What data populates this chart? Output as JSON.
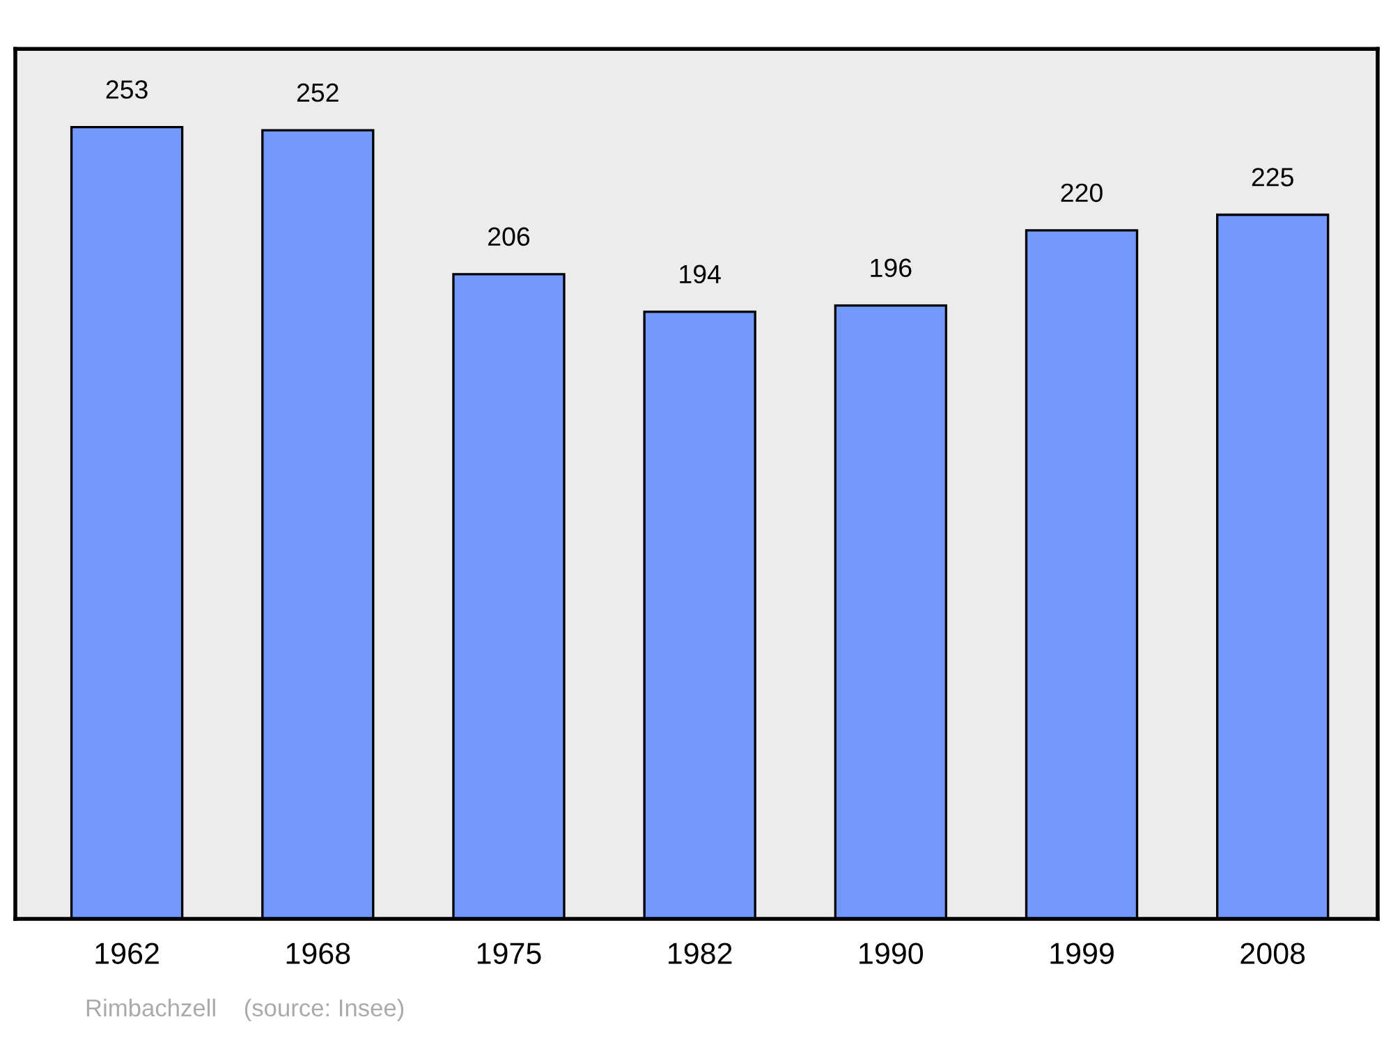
{
  "chart_data": {
    "type": "bar",
    "categories": [
      "1962",
      "1968",
      "1975",
      "1982",
      "1990",
      "1999",
      "2008"
    ],
    "values": [
      253,
      252,
      206,
      194,
      196,
      220,
      225
    ],
    "color": "#7399ff",
    "ylim": [
      0,
      278
    ],
    "data_labels": true,
    "grid": false,
    "legend": false,
    "tick_labels": "x",
    "annotations": [
      "Rimbachzell    (source: Insee)"
    ]
  }
}
